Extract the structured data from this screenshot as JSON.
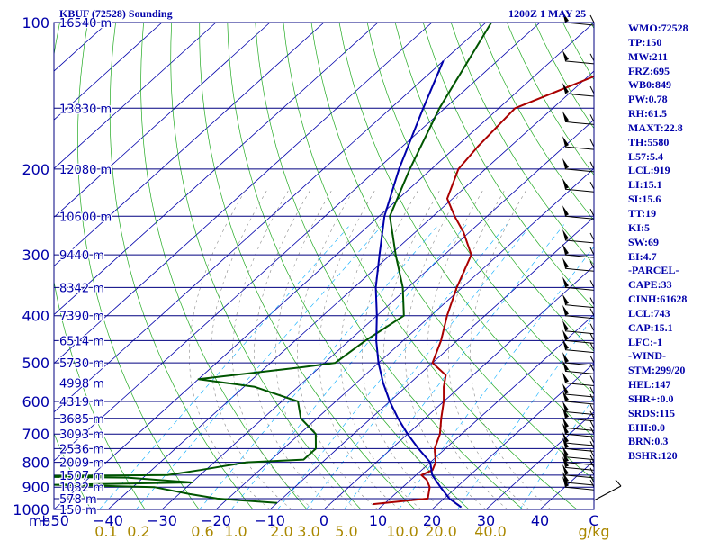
{
  "header": {
    "station": "KBUF (72528) Sounding",
    "time": "1200Z  1 MAY 25"
  },
  "stats": [
    "WMO:72528",
    "TP:150",
    "MW:211",
    "FRZ:695",
    "WB0:849",
    "PW:0.78",
    "RH:61.5",
    "MAXT:22.8",
    "TH:5580",
    "L57:5.4",
    "LCL:919",
    "LI:15.1",
    "SI:15.6",
    "TT:19",
    "KI:5",
    "SW:69",
    "EI:4.7",
    "-PARCEL-",
    "CAPE:33",
    "CINH:61628",
    "LCL:743",
    "CAP:15.1",
    "LFC:-1",
    "-WIND-",
    "STM:299/20",
    "HEL:147",
    "SHR+:0.0",
    "SRDS:115",
    "EHI:0.0",
    "BRN:0.3",
    "BSHR:120"
  ],
  "chart_data": {
    "type": "line",
    "chart_kind": "skew-T log-P sounding diagram",
    "title": "KBUF (72528) Sounding",
    "subtitle": "1200Z  1 MAY 25",
    "xlabel": "C",
    "x2label": "g/kg",
    "ylabel": "mb",
    "xlim": [
      -50,
      50
    ],
    "ylim": [
      1000,
      100
    ],
    "y_scale": "log",
    "pressure_ticks": [
      100,
      200,
      300,
      400,
      500,
      600,
      700,
      800,
      900,
      1000
    ],
    "temperature_ticks": [
      -50,
      -40,
      -30,
      -20,
      -10,
      0,
      10,
      20,
      30,
      40
    ],
    "mixing_ratio_ticks": [
      "0.1",
      "0.2",
      "0.6",
      "1.0",
      "2.0",
      "3.0",
      "5.0",
      "10.0",
      "20.0",
      "40.0"
    ],
    "isobars_mb": [
      100,
      150,
      200,
      250,
      300,
      350,
      400,
      450,
      500,
      550,
      600,
      650,
      700,
      750,
      800,
      850,
      900,
      950,
      1000
    ],
    "height_labels": [
      {
        "p": 100,
        "label": "16540 m"
      },
      {
        "p": 150,
        "label": "13830 m"
      },
      {
        "p": 200,
        "label": "12080 m"
      },
      {
        "p": 250,
        "label": "10600 m"
      },
      {
        "p": 300,
        "label": "9440 m"
      },
      {
        "p": 350,
        "label": "8342 m"
      },
      {
        "p": 400,
        "label": "7390 m"
      },
      {
        "p": 450,
        "label": "6514 m"
      },
      {
        "p": 500,
        "label": "5730 m"
      },
      {
        "p": 550,
        "label": "4998 m"
      },
      {
        "p": 600,
        "label": "4319 m"
      },
      {
        "p": 650,
        "label": "3685 m"
      },
      {
        "p": 700,
        "label": "3093 m"
      },
      {
        "p": 750,
        "label": "2536 m"
      },
      {
        "p": 800,
        "label": "2009 m"
      },
      {
        "p": 850,
        "label": "1507 m"
      },
      {
        "p": 900,
        "label": "1032 m"
      },
      {
        "p": 950,
        "label": "578 m"
      },
      {
        "p": 1000,
        "label": "150 m"
      }
    ],
    "series": [
      {
        "name": "Temperature",
        "color": "#aa0000",
        "points": [
          [
            100,
            -6
          ],
          [
            120,
            -35
          ],
          [
            150,
            -47
          ],
          [
            180,
            -46
          ],
          [
            200,
            -45
          ],
          [
            230,
            -41
          ],
          [
            250,
            -36
          ],
          [
            270,
            -31
          ],
          [
            300,
            -25
          ],
          [
            350,
            -21
          ],
          [
            400,
            -17
          ],
          [
            450,
            -13
          ],
          [
            500,
            -10
          ],
          [
            530,
            -5
          ],
          [
            560,
            -3
          ],
          [
            600,
            0
          ],
          [
            650,
            3
          ],
          [
            700,
            6
          ],
          [
            750,
            8
          ],
          [
            800,
            11
          ],
          [
            830,
            12
          ],
          [
            850,
            11
          ],
          [
            870,
            13
          ],
          [
            900,
            15
          ],
          [
            950,
            17
          ],
          [
            975,
            8
          ]
        ]
      },
      {
        "name": "Dewpoint",
        "color": "#005500",
        "points": [
          [
            100,
            -69
          ],
          [
            150,
            -61
          ],
          [
            200,
            -54
          ],
          [
            250,
            -48
          ],
          [
            300,
            -39
          ],
          [
            350,
            -31
          ],
          [
            400,
            -25
          ],
          [
            450,
            -27
          ],
          [
            500,
            -28
          ],
          [
            510,
            -33
          ],
          [
            540,
            -50
          ],
          [
            560,
            -38
          ],
          [
            600,
            -27
          ],
          [
            650,
            -23
          ],
          [
            700,
            -17
          ],
          [
            750,
            -14
          ],
          [
            790,
            -14
          ],
          [
            800,
            -24
          ],
          [
            830,
            -31
          ],
          [
            850,
            -36
          ],
          [
            855,
            -70
          ],
          [
            860,
            -43
          ],
          [
            880,
            -30
          ],
          [
            890,
            -55
          ],
          [
            900,
            -36
          ],
          [
            930,
            -28
          ],
          [
            950,
            -22
          ],
          [
            970,
            -10
          ]
        ]
      },
      {
        "name": "Parcel",
        "color": "#0000aa",
        "points": [
          [
            120,
            -70
          ],
          [
            150,
            -64
          ],
          [
            200,
            -56
          ],
          [
            250,
            -49
          ],
          [
            300,
            -42
          ],
          [
            350,
            -36
          ],
          [
            400,
            -30
          ],
          [
            450,
            -25
          ],
          [
            500,
            -20
          ],
          [
            550,
            -15
          ],
          [
            600,
            -10
          ],
          [
            650,
            -5
          ],
          [
            700,
            0
          ],
          [
            750,
            5
          ],
          [
            800,
            10
          ],
          [
            850,
            13
          ],
          [
            900,
            17
          ],
          [
            950,
            21
          ],
          [
            990,
            25
          ]
        ]
      }
    ],
    "wind_barbs_present": true
  }
}
